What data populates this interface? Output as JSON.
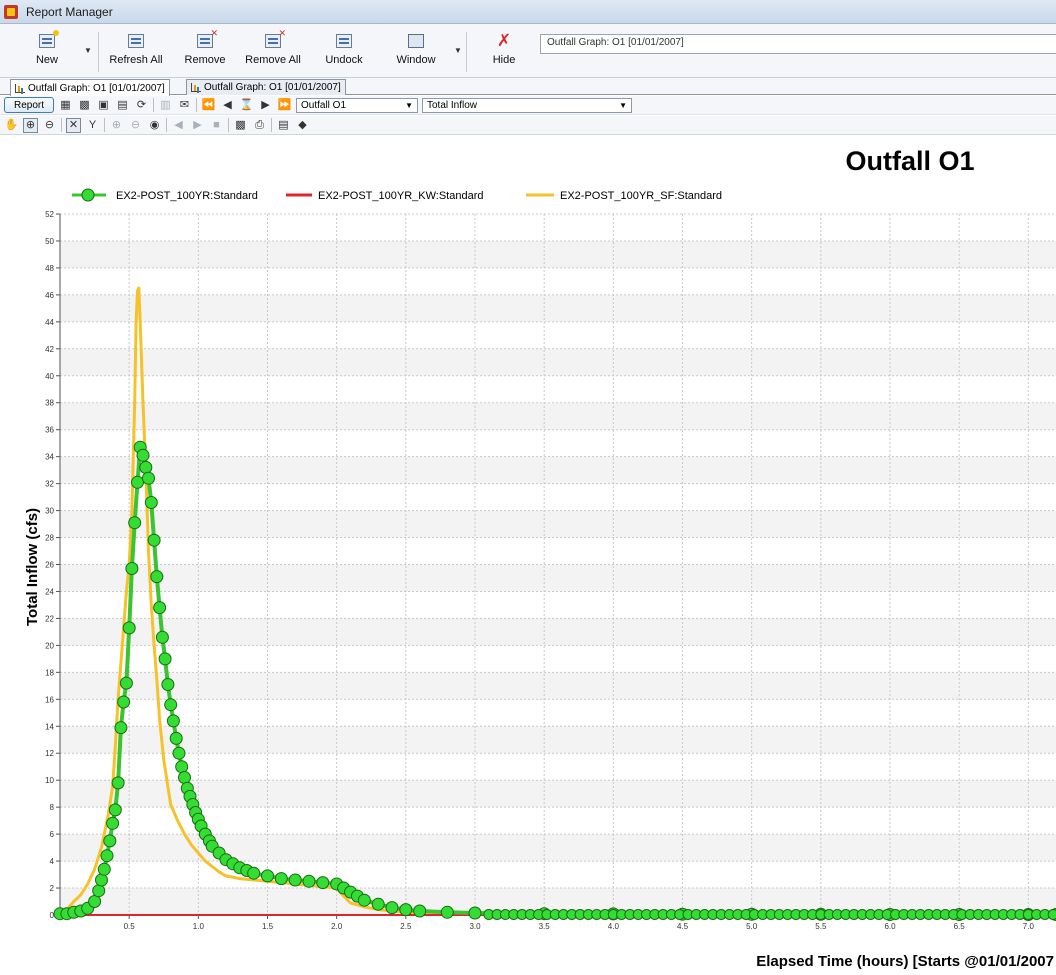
{
  "window": {
    "title": "Report Manager"
  },
  "ribbon": {
    "buttons": [
      {
        "label": "New"
      },
      {
        "label": "Refresh All"
      },
      {
        "label": "Remove"
      },
      {
        "label": "Remove All"
      },
      {
        "label": "Undock"
      },
      {
        "label": "Window"
      },
      {
        "label": "Hide"
      }
    ],
    "report_selector": "Outfall Graph: O1 [01/01/2007]"
  },
  "tabs": [
    {
      "label": "Outfall Graph: O1 [01/01/2007]",
      "active": true
    },
    {
      "label": "Outfall Graph: O1 [01/01/2007]",
      "active": false
    }
  ],
  "toolbar": {
    "report_label": "Report",
    "element_select": "Outfall O1",
    "variable_select": "Total Inflow"
  },
  "chart_data": {
    "type": "line",
    "title": "Outfall O1",
    "xlabel": "Elapsed Time (hours) [Starts @01/01/2007",
    "ylabel": "Total Inflow (cfs)",
    "xlim": [
      0,
      7.2
    ],
    "ylim": [
      0,
      52
    ],
    "xticks": [
      "0.5",
      "1.0",
      "1.5",
      "2.0",
      "2.5",
      "3.0",
      "3.5",
      "4.0",
      "4.5",
      "5.0",
      "5.5",
      "6.0",
      "6.5",
      "7.0"
    ],
    "yticks": [
      0,
      2,
      4,
      6,
      8,
      10,
      12,
      14,
      16,
      18,
      20,
      22,
      24,
      26,
      28,
      30,
      32,
      34,
      36,
      38,
      40,
      42,
      44,
      46,
      48,
      50,
      52
    ],
    "grid": true,
    "legend": "top-left",
    "series": [
      {
        "name": "EX2-POST_100YR:Standard",
        "color": "#39c431",
        "marker": "circle",
        "x": [
          0.0,
          0.05,
          0.1,
          0.15,
          0.2,
          0.25,
          0.28,
          0.3,
          0.32,
          0.34,
          0.36,
          0.38,
          0.4,
          0.42,
          0.44,
          0.46,
          0.48,
          0.5,
          0.52,
          0.54,
          0.56,
          0.58,
          0.6,
          0.62,
          0.64,
          0.66,
          0.68,
          0.7,
          0.72,
          0.74,
          0.76,
          0.78,
          0.8,
          0.82,
          0.84,
          0.86,
          0.88,
          0.9,
          0.92,
          0.94,
          0.96,
          0.98,
          1.0,
          1.02,
          1.05,
          1.08,
          1.1,
          1.15,
          1.2,
          1.25,
          1.3,
          1.35,
          1.4,
          1.5,
          1.6,
          1.7,
          1.8,
          1.9,
          2.0,
          2.05,
          2.1,
          2.15,
          2.2,
          2.3,
          2.4,
          2.5,
          2.6,
          2.8,
          3.0,
          3.5,
          4.0,
          4.5,
          5.0,
          5.5,
          6.0,
          6.5,
          7.0,
          7.2
        ],
        "y": [
          0.1,
          0.1,
          0.2,
          0.3,
          0.5,
          1.0,
          1.8,
          2.6,
          3.4,
          4.4,
          5.5,
          6.8,
          7.8,
          9.8,
          13.9,
          15.8,
          17.2,
          21.3,
          25.7,
          29.1,
          32.1,
          34.7,
          34.1,
          33.2,
          32.4,
          30.6,
          27.8,
          25.1,
          22.8,
          20.6,
          19.0,
          17.1,
          15.6,
          14.4,
          13.1,
          12.0,
          11.0,
          10.2,
          9.4,
          8.8,
          8.2,
          7.6,
          7.1,
          6.6,
          6.0,
          5.5,
          5.1,
          4.6,
          4.1,
          3.8,
          3.5,
          3.3,
          3.1,
          2.9,
          2.7,
          2.6,
          2.5,
          2.4,
          2.3,
          2.0,
          1.7,
          1.4,
          1.1,
          0.8,
          0.55,
          0.4,
          0.3,
          0.2,
          0.15,
          0.1,
          0.08,
          0.06,
          0.05,
          0.05,
          0.04,
          0.04,
          0.04,
          0.04
        ]
      },
      {
        "name": "EX2-POST_100YR_KW:Standard",
        "color": "#e0262a",
        "marker": "none",
        "x": [
          0.0,
          7.2
        ],
        "y": [
          0,
          0
        ]
      },
      {
        "name": "EX2-POST_100YR_SF:Standard",
        "color": "#f6c22a",
        "marker": "none",
        "x": [
          0.0,
          0.05,
          0.1,
          0.15,
          0.2,
          0.25,
          0.3,
          0.35,
          0.38,
          0.4,
          0.42,
          0.45,
          0.48,
          0.5,
          0.52,
          0.54,
          0.55,
          0.56,
          0.57,
          0.58,
          0.6,
          0.62,
          0.64,
          0.66,
          0.68,
          0.7,
          0.72,
          0.75,
          0.78,
          0.8,
          0.85,
          0.9,
          0.95,
          1.0,
          1.05,
          1.1,
          1.15,
          1.2,
          1.3,
          1.4,
          1.5,
          1.6,
          1.7,
          1.8,
          1.9,
          2.0,
          2.05,
          2.1,
          2.2,
          2.3,
          2.4,
          2.5,
          2.6,
          2.8,
          3.0,
          3.5,
          4.0,
          5.0,
          6.0,
          7.0,
          7.2
        ],
        "y": [
          0.2,
          0.4,
          1.0,
          1.5,
          2.3,
          3.4,
          5.0,
          7.5,
          9.5,
          12.5,
          16.0,
          20.0,
          24.0,
          26.0,
          30.0,
          38.0,
          44.0,
          46.3,
          46.5,
          44.0,
          38.0,
          33.0,
          27.0,
          23.0,
          20.0,
          17.5,
          14.5,
          11.5,
          9.5,
          8.2,
          7.0,
          6.0,
          5.2,
          4.6,
          4.0,
          3.6,
          3.2,
          2.9,
          2.7,
          2.6,
          2.5,
          2.4,
          2.3,
          2.2,
          2.1,
          2.0,
          1.4,
          0.9,
          0.6,
          0.4,
          0.3,
          0.2,
          0.15,
          0.1,
          0.08,
          0.05,
          0.04,
          0.03,
          0.03,
          0.03,
          0.03
        ]
      }
    ]
  }
}
